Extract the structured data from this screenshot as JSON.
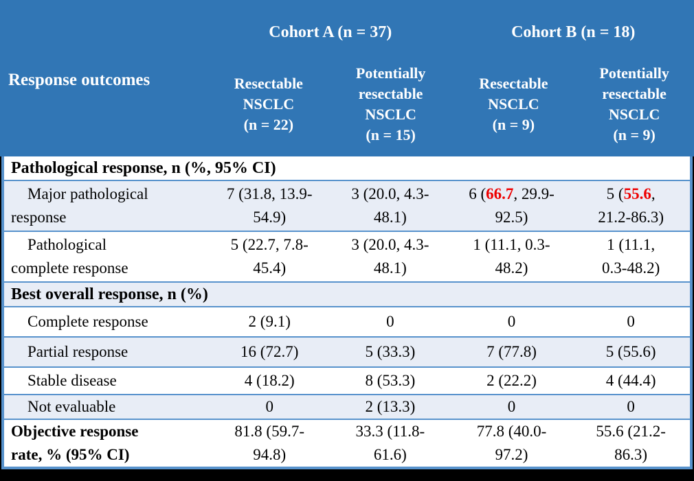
{
  "colors": {
    "header_bg": "#3176B5",
    "row_alt": "#E8EDF6",
    "border": "#5792CC",
    "red": "#EE0000",
    "frame": "#000000"
  },
  "header": {
    "row_label": "Response outcomes",
    "cohorts": [
      {
        "label": "Cohort A (n = 37)"
      },
      {
        "label": "Cohort B (n = 18)"
      }
    ],
    "columns": [
      {
        "label": "Resectable\nNSCLC\n(n = 22)"
      },
      {
        "label": "Potentially\nresectable\nNSCLC\n(n = 15)"
      },
      {
        "label": "Resectable\nNSCLC\n(n = 9)"
      },
      {
        "label": "Potentially\nresectable\nNSCLC\n(n = 9)"
      }
    ]
  },
  "rows": [
    {
      "type": "section",
      "label": "Pathological response, n (%, 95% CI)"
    },
    {
      "type": "data",
      "label": "Major pathological\nresponse",
      "cells": [
        {
          "text": "7 (31.8, 13.9-\n54.9)"
        },
        {
          "text": "3 (20.0, 4.3-\n48.1)"
        },
        {
          "pre": "6 (",
          "red": "66.7",
          "post": ", 29.9-\n92.5)"
        },
        {
          "pre": "5 (",
          "red": "55.6",
          "post": ",\n21.2-86.3)"
        }
      ]
    },
    {
      "type": "data",
      "label": "Pathological\ncomplete response",
      "cells": [
        {
          "text": "5 (22.7, 7.8-\n45.4)"
        },
        {
          "text": "3 (20.0, 4.3-\n48.1)"
        },
        {
          "text": "1 (11.1, 0.3-\n48.2)"
        },
        {
          "text": "1 (11.1,\n0.3-48.2)"
        }
      ]
    },
    {
      "type": "section",
      "label": "Best overall response, n (%)"
    },
    {
      "type": "data",
      "label": "Complete response",
      "cells": [
        {
          "text": "2 (9.1)"
        },
        {
          "text": "0"
        },
        {
          "text": "0"
        },
        {
          "text": "0"
        }
      ]
    },
    {
      "type": "data",
      "label": "Partial response",
      "cells": [
        {
          "text": "16 (72.7)"
        },
        {
          "text": "5 (33.3)"
        },
        {
          "text": "7 (77.8)"
        },
        {
          "text": "5 (55.6)"
        }
      ]
    },
    {
      "type": "data",
      "label": "Stable disease",
      "cells": [
        {
          "text": "4 (18.2)"
        },
        {
          "text": "8 (53.3)"
        },
        {
          "text": "2 (22.2)"
        },
        {
          "text": "4 (44.4)"
        }
      ]
    },
    {
      "type": "data",
      "label": "Not evaluable",
      "cells": [
        {
          "text": "0"
        },
        {
          "text": "2 (13.3)"
        },
        {
          "text": "0"
        },
        {
          "text": "0"
        }
      ]
    },
    {
      "type": "data-bold",
      "label": "Objective response\nrate, % (95% CI)",
      "cells": [
        {
          "text": "81.8 (59.7-\n94.8)"
        },
        {
          "text": "33.3 (11.8-\n61.6)"
        },
        {
          "text": "77.8 (40.0-\n97.2)"
        },
        {
          "text": "55.6 (21.2-\n86.3)"
        }
      ]
    }
  ]
}
